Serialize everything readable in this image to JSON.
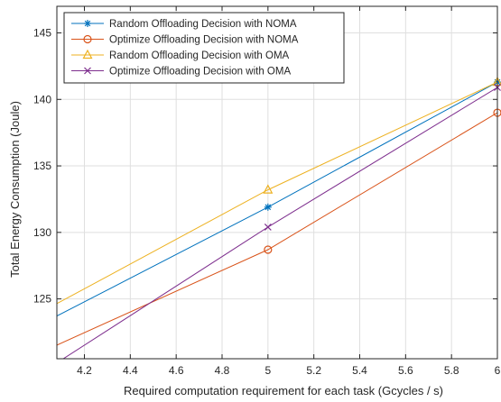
{
  "chart_data": {
    "type": "line",
    "title": "",
    "xlabel": "Required computation requirement for each task (Gcycles / s)",
    "ylabel": "Total Energy Consumption (Joule)",
    "xlim": [
      4.08,
      6.0
    ],
    "ylim": [
      120.5,
      147.0
    ],
    "x_ticks": [
      4.2,
      4.4,
      4.6,
      4.8,
      5.0,
      5.2,
      5.4,
      5.6,
      5.8,
      6.0
    ],
    "x_tick_labels": [
      "4.2",
      "4.4",
      "4.6",
      "4.8",
      "5",
      "5.2",
      "5.4",
      "5.6",
      "5.8",
      "6"
    ],
    "y_ticks": [
      125,
      130,
      135,
      140,
      145
    ],
    "y_tick_labels": [
      "125",
      "130",
      "135",
      "140",
      "145"
    ],
    "grid": true,
    "legend_position": "top-left",
    "series": [
      {
        "name": "Random Offloading Decision with NOMA",
        "color": "#0072BD",
        "marker": "asterisk",
        "x": [
          4.0,
          5.0,
          6.0
        ],
        "y": [
          123.0,
          131.9,
          141.3
        ]
      },
      {
        "name": "Optimize Offloading Decision with NOMA",
        "color": "#D95319",
        "marker": "circle",
        "x": [
          4.0,
          5.0,
          6.0
        ],
        "y": [
          120.9,
          128.7,
          139.0
        ]
      },
      {
        "name": "Random Offloading Decision with OMA",
        "color": "#EDB120",
        "marker": "triangle",
        "x": [
          4.0,
          5.0,
          6.0
        ],
        "y": [
          123.9,
          133.2,
          141.3
        ]
      },
      {
        "name": "Optimize Offloading Decision with OMA",
        "color": "#7E2F8E",
        "marker": "x",
        "x": [
          4.0,
          5.0,
          6.0
        ],
        "y": [
          119.3,
          130.4,
          140.9
        ]
      }
    ]
  }
}
